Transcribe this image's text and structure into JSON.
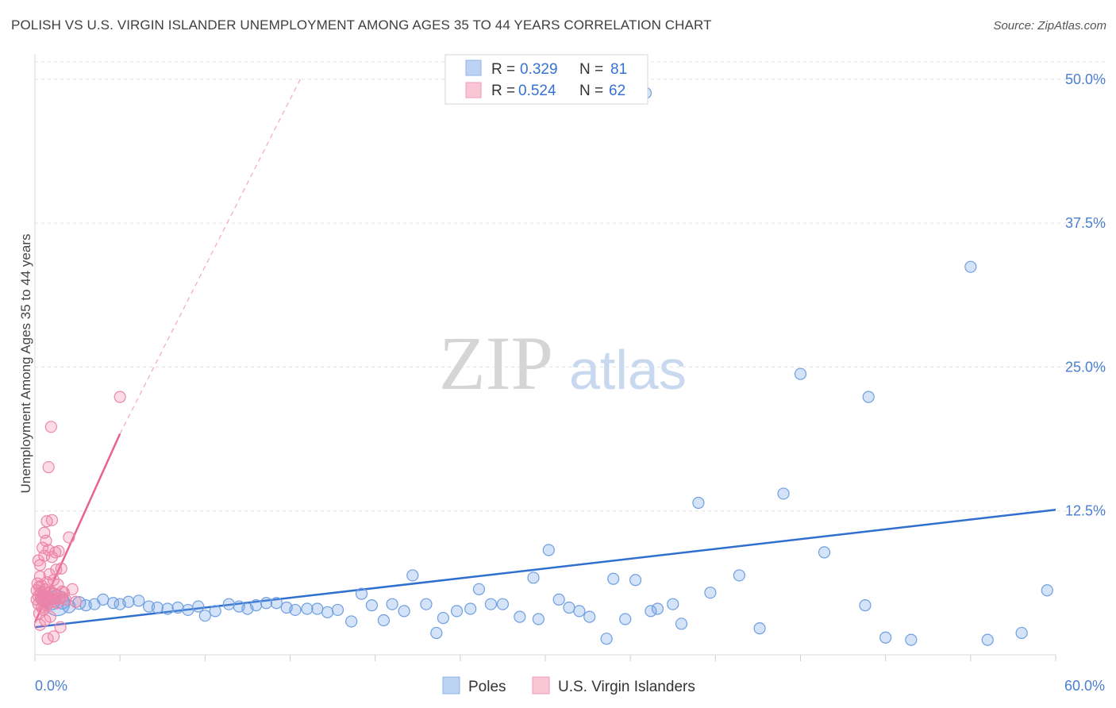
{
  "title": "POLISH VS U.S. VIRGIN ISLANDER UNEMPLOYMENT AMONG AGES 35 TO 44 YEARS CORRELATION CHART",
  "source": "Source: ZipAtlas.com",
  "watermark": {
    "zip": "ZIP",
    "atlas": "atlas"
  },
  "legend": {
    "series1": {
      "r_label": "R =",
      "r_value": "0.329",
      "n_label": "N =",
      "n_value": "81"
    },
    "series2": {
      "r_label": "R =",
      "r_value": "0.524",
      "n_label": "N =",
      "n_value": "62"
    }
  },
  "colors": {
    "poles": "#6fa3e6",
    "poles_line": "#2f6fcf",
    "vi": "#f07fa5",
    "vi_line": "#e8638d",
    "tick": "#4a7fd0"
  },
  "chart_data": {
    "type": "scatter",
    "title": "POLISH VS U.S. VIRGIN ISLANDER UNEMPLOYMENT AMONG AGES 35 TO 44 YEARS CORRELATION CHART",
    "xlabel": "",
    "ylabel": "Unemployment Among Ages 35 to 44 years",
    "xlim": [
      0,
      60
    ],
    "ylim": [
      0,
      51.5
    ],
    "x_tick_labels": [
      "0.0%",
      "60.0%"
    ],
    "y_ticks": [
      12.5,
      25.0,
      37.5,
      50.0
    ],
    "y_tick_labels": [
      "12.5%",
      "25.0%",
      "37.5%",
      "50.0%"
    ],
    "grid": true,
    "legend_position": "top-center",
    "series": [
      {
        "name": "Poles",
        "r": 0.329,
        "n": 81,
        "trend": {
          "x": [
            0,
            60
          ],
          "y": [
            2.4,
            12.6
          ]
        },
        "points": [
          [
            0.5,
            4.8,
            9
          ],
          [
            0.8,
            5.0,
            8
          ],
          [
            1.0,
            4.6,
            10
          ],
          [
            1.3,
            4.5,
            16
          ],
          [
            1.6,
            4.6,
            9
          ],
          [
            2.0,
            4.2,
            8
          ],
          [
            2.6,
            4.5,
            8
          ],
          [
            3.0,
            4.3,
            7
          ],
          [
            3.5,
            4.4,
            7
          ],
          [
            4.0,
            4.8,
            7
          ],
          [
            4.6,
            4.5,
            7
          ],
          [
            5.0,
            4.4,
            7
          ],
          [
            5.5,
            4.6,
            7
          ],
          [
            6.1,
            4.7,
            7
          ],
          [
            6.7,
            4.2,
            7
          ],
          [
            7.2,
            4.1,
            7
          ],
          [
            7.8,
            4.0,
            7
          ],
          [
            8.4,
            4.1,
            7
          ],
          [
            9.0,
            3.9,
            7
          ],
          [
            9.6,
            4.2,
            7
          ],
          [
            10.0,
            3.4,
            7
          ],
          [
            10.6,
            3.8,
            7
          ],
          [
            11.4,
            4.4,
            7
          ],
          [
            12.0,
            4.2,
            7
          ],
          [
            12.5,
            4.0,
            7
          ],
          [
            13.0,
            4.3,
            7
          ],
          [
            13.6,
            4.5,
            7
          ],
          [
            14.2,
            4.5,
            7
          ],
          [
            14.8,
            4.1,
            7
          ],
          [
            15.3,
            3.9,
            7
          ],
          [
            16.0,
            4.0,
            7
          ],
          [
            16.6,
            4.0,
            7
          ],
          [
            17.2,
            3.7,
            7
          ],
          [
            17.8,
            3.9,
            7
          ],
          [
            18.6,
            2.9,
            7
          ],
          [
            19.2,
            5.3,
            7
          ],
          [
            19.8,
            4.3,
            7
          ],
          [
            20.5,
            3.0,
            7
          ],
          [
            21.0,
            4.4,
            7
          ],
          [
            21.7,
            3.8,
            7
          ],
          [
            22.2,
            6.9,
            7
          ],
          [
            23.0,
            4.4,
            7
          ],
          [
            23.6,
            1.9,
            7
          ],
          [
            24.0,
            3.2,
            7
          ],
          [
            24.8,
            3.8,
            7
          ],
          [
            25.6,
            4.0,
            7
          ],
          [
            26.1,
            5.7,
            7
          ],
          [
            26.8,
            4.4,
            7
          ],
          [
            27.5,
            4.4,
            7
          ],
          [
            28.5,
            3.3,
            7
          ],
          [
            29.3,
            6.7,
            7
          ],
          [
            29.6,
            3.1,
            7
          ],
          [
            30.2,
            9.1,
            7
          ],
          [
            30.8,
            4.8,
            7
          ],
          [
            31.4,
            4.1,
            7
          ],
          [
            32.0,
            3.8,
            7
          ],
          [
            32.6,
            3.3,
            7
          ],
          [
            33.6,
            1.4,
            7
          ],
          [
            34.0,
            6.6,
            7
          ],
          [
            34.7,
            3.1,
            7
          ],
          [
            35.3,
            6.5,
            7
          ],
          [
            36.2,
            3.8,
            7
          ],
          [
            36.6,
            4.0,
            7
          ],
          [
            37.5,
            4.4,
            7
          ],
          [
            38.0,
            2.7,
            7
          ],
          [
            39.0,
            13.2,
            7
          ],
          [
            39.7,
            5.4,
            7
          ],
          [
            41.4,
            6.9,
            7
          ],
          [
            42.6,
            2.3,
            7
          ],
          [
            44.0,
            14.0,
            7
          ],
          [
            45.0,
            24.4,
            7
          ],
          [
            46.4,
            8.9,
            7
          ],
          [
            48.8,
            4.3,
            7
          ],
          [
            49.0,
            22.4,
            7
          ],
          [
            50.0,
            1.5,
            7
          ],
          [
            51.5,
            1.3,
            7
          ],
          [
            55.0,
            33.7,
            7
          ],
          [
            56.0,
            1.3,
            7
          ],
          [
            58.0,
            1.9,
            7
          ],
          [
            59.5,
            5.6,
            7
          ],
          [
            35.9,
            48.8,
            7
          ]
        ]
      },
      {
        "name": "U.S. Virgin Islanders",
        "r": 0.524,
        "n": 62,
        "trend": {
          "x": [
            0,
            5.0
          ],
          "y": [
            2.8,
            19.2
          ]
        },
        "trend_extended": {
          "x": [
            5.0,
            15.6
          ],
          "y": [
            19.2,
            50.0
          ]
        },
        "points": [
          [
            0.1,
            5.6
          ],
          [
            0.1,
            4.8
          ],
          [
            0.15,
            6.2
          ],
          [
            0.2,
            4.4
          ],
          [
            0.2,
            5.1
          ],
          [
            0.25,
            3.6
          ],
          [
            0.25,
            5.9
          ],
          [
            0.3,
            7.8
          ],
          [
            0.3,
            6.8
          ],
          [
            0.35,
            4.9
          ],
          [
            0.35,
            5.4
          ],
          [
            0.4,
            4.1
          ],
          [
            0.4,
            6.0
          ],
          [
            0.45,
            9.3
          ],
          [
            0.45,
            5.2
          ],
          [
            0.5,
            3.9
          ],
          [
            0.5,
            4.6
          ],
          [
            0.55,
            10.6
          ],
          [
            0.55,
            8.6
          ],
          [
            0.6,
            5.7
          ],
          [
            0.6,
            3.0
          ],
          [
            0.65,
            9.9
          ],
          [
            0.65,
            5.1
          ],
          [
            0.7,
            11.6
          ],
          [
            0.7,
            6.3
          ],
          [
            0.75,
            4.4
          ],
          [
            0.75,
            1.4
          ],
          [
            0.8,
            16.3
          ],
          [
            0.8,
            9.1
          ],
          [
            0.85,
            5.4
          ],
          [
            0.85,
            7.0
          ],
          [
            0.9,
            4.8
          ],
          [
            0.9,
            3.3
          ],
          [
            0.95,
            19.8
          ],
          [
            0.95,
            5.5
          ],
          [
            1.0,
            11.7
          ],
          [
            1.0,
            8.5
          ],
          [
            1.05,
            4.6
          ],
          [
            1.1,
            6.5
          ],
          [
            1.1,
            1.6
          ],
          [
            1.15,
            5.3
          ],
          [
            1.2,
            4.9
          ],
          [
            1.2,
            8.9
          ],
          [
            1.25,
            7.4
          ],
          [
            1.3,
            4.5
          ],
          [
            1.35,
            6.1
          ],
          [
            1.4,
            9.0
          ],
          [
            1.45,
            4.9
          ],
          [
            1.5,
            2.4
          ],
          [
            1.55,
            7.5
          ],
          [
            1.6,
            5.0
          ],
          [
            1.7,
            5.4
          ],
          [
            1.8,
            4.8
          ],
          [
            2.0,
            10.2
          ],
          [
            2.2,
            5.7
          ],
          [
            2.4,
            4.6
          ],
          [
            0.2,
            8.2
          ],
          [
            0.3,
            2.6
          ],
          [
            0.5,
            5.2
          ],
          [
            0.7,
            4.3
          ],
          [
            1.6,
            5.5
          ],
          [
            5.0,
            22.4
          ]
        ]
      }
    ]
  },
  "bottom_legend": [
    "Poles",
    "U.S. Virgin Islanders"
  ]
}
